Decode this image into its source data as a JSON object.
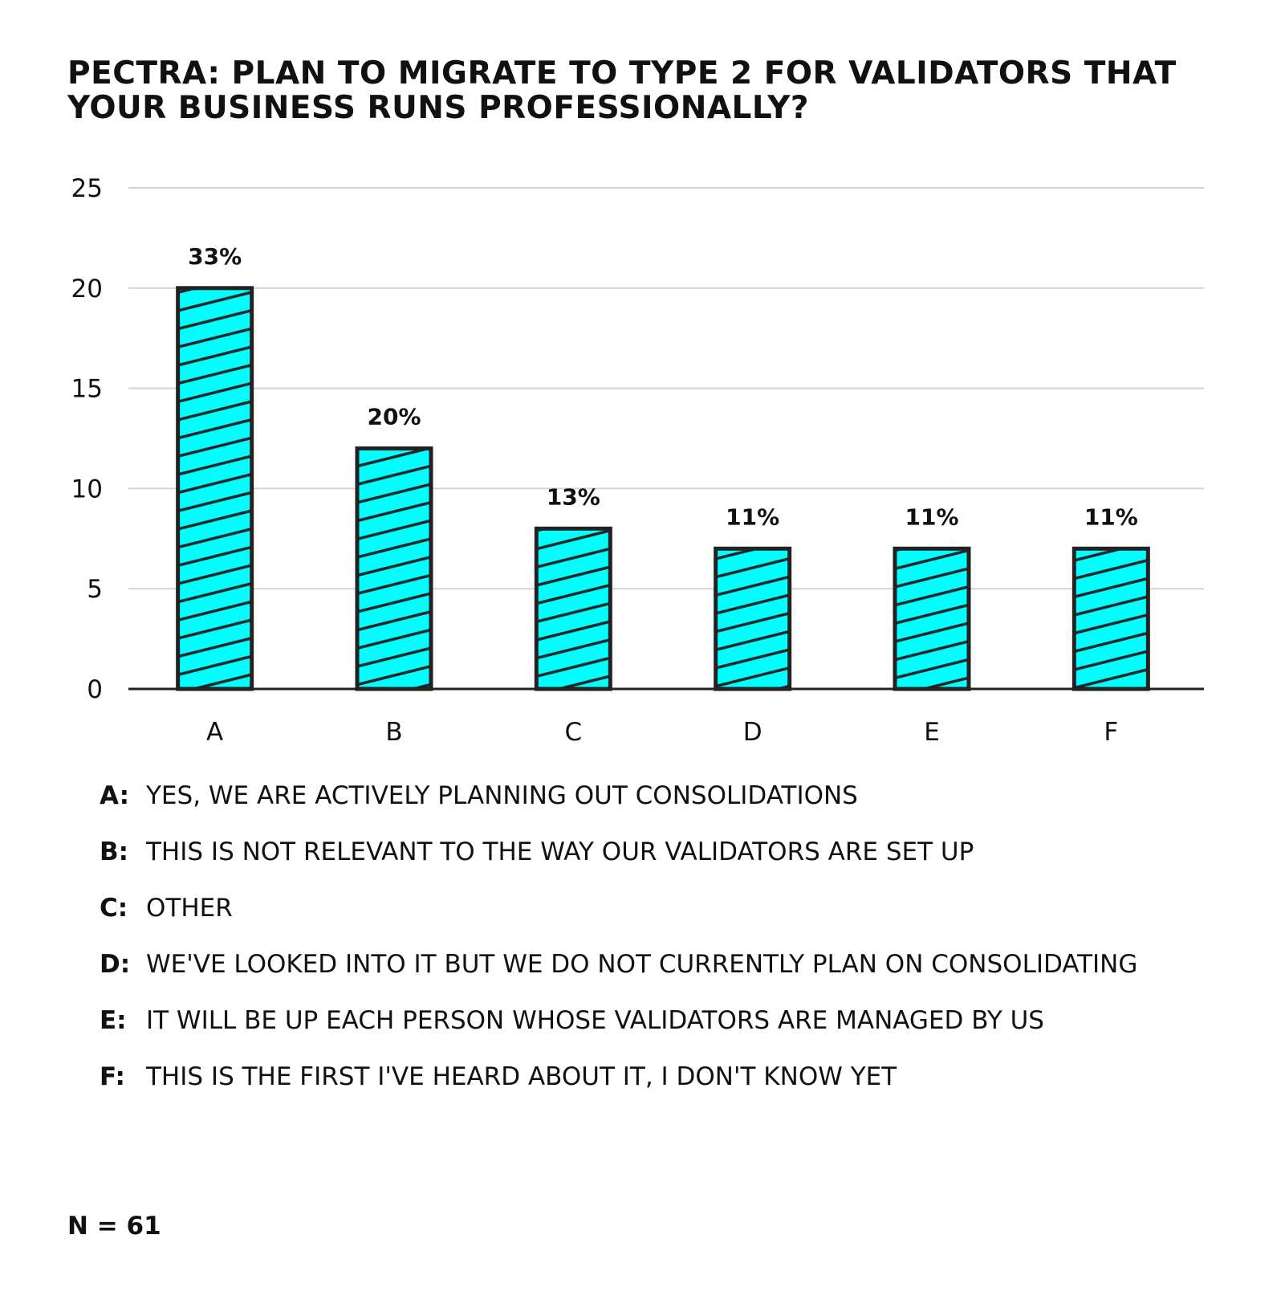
{
  "chart_data": {
    "type": "bar",
    "title": "PECTRA: PLAN TO MIGRATE TO TYPE 2 FOR VALIDATORS THAT YOUR BUSINESS RUNS PROFESSIONALLY?",
    "categories": [
      "A",
      "B",
      "C",
      "D",
      "E",
      "F"
    ],
    "values": [
      20,
      12,
      8,
      7,
      7,
      7
    ],
    "data_labels": [
      "33%",
      "20%",
      "13%",
      "11%",
      "11%",
      "11%"
    ],
    "yticks": [
      "0",
      "5",
      "10",
      "15",
      "20",
      "25"
    ],
    "ylim": [
      0,
      25
    ],
    "xlabel": "",
    "ylabel": "",
    "grid": "horizontal",
    "bar_color": "#00ffff",
    "hatch_color": "#222222"
  },
  "legend": [
    {
      "key": "A:",
      "text": "YES, WE ARE ACTIVELY PLANNING OUT CONSOLIDATIONS"
    },
    {
      "key": "B:",
      "text": "THIS IS NOT RELEVANT TO THE WAY OUR VALIDATORS ARE SET UP"
    },
    {
      "key": "C:",
      "text": "OTHER"
    },
    {
      "key": "D:",
      "text": "WE'VE LOOKED INTO IT BUT WE DO NOT CURRENTLY PLAN ON CONSOLIDATING"
    },
    {
      "key": "E:",
      "text": "IT WILL BE UP EACH PERSON WHOSE VALIDATORS ARE MANAGED BY US"
    },
    {
      "key": "F:",
      "text": "THIS IS THE FIRST I'VE HEARD ABOUT IT, I DON'T KNOW YET"
    }
  ],
  "footnote": "N = 61"
}
